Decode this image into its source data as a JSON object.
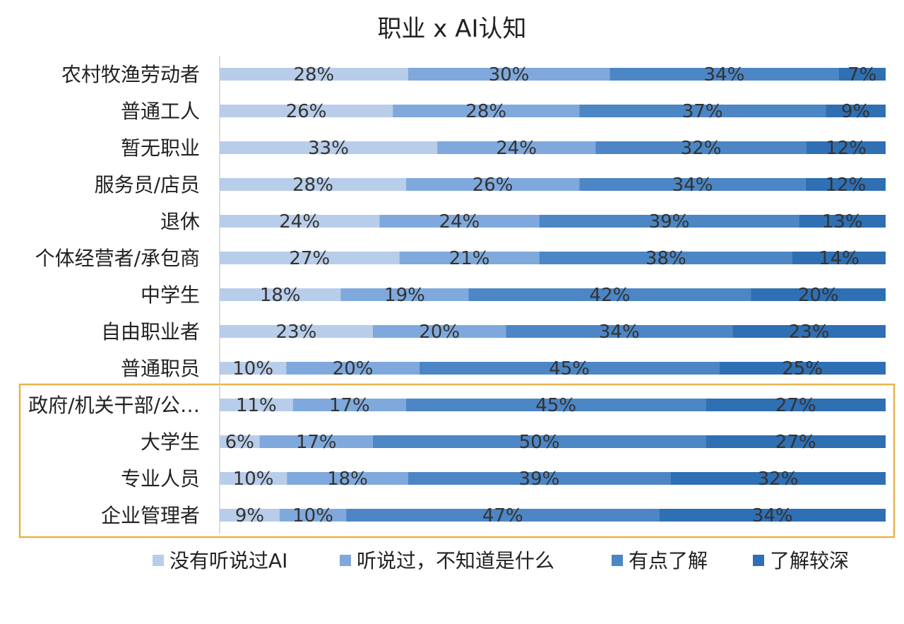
{
  "chart_data": {
    "type": "bar",
    "orientation": "horizontal",
    "stacked": true,
    "percent_stacked": true,
    "title": "职业 x AI认知",
    "categories": [
      "农村牧渔劳动者",
      "普通工人",
      "暂无职业",
      "服务员/店员",
      "退休",
      "个体经营者/承包商",
      "中学生",
      "自由职业者",
      "普通职员",
      "政府/机关干部/公…",
      "大学生",
      "专业人员",
      "企业管理者"
    ],
    "series": [
      {
        "name": "没有听说过AI",
        "color": "#b8cde9",
        "values": [
          28,
          26,
          33,
          28,
          24,
          27,
          18,
          23,
          10,
          11,
          6,
          10,
          9
        ]
      },
      {
        "name": "听说过，不知道是什么",
        "color": "#7fa9dc",
        "values": [
          30,
          28,
          24,
          26,
          24,
          21,
          19,
          20,
          20,
          17,
          17,
          18,
          10
        ]
      },
      {
        "name": "有点了解",
        "color": "#4c86c5",
        "values": [
          34,
          37,
          32,
          34,
          39,
          38,
          42,
          34,
          45,
          45,
          50,
          39,
          47
        ]
      },
      {
        "name": "了解较深",
        "color": "#2f6fb3",
        "values": [
          7,
          9,
          12,
          12,
          13,
          14,
          20,
          23,
          25,
          27,
          27,
          32,
          34
        ]
      }
    ],
    "highlight": {
      "categories": [
        "政府/机关干部/公…",
        "大学生",
        "专业人员",
        "企业管理者"
      ],
      "color": "#e8b24c"
    },
    "grid": false,
    "legend_position": "bottom"
  }
}
